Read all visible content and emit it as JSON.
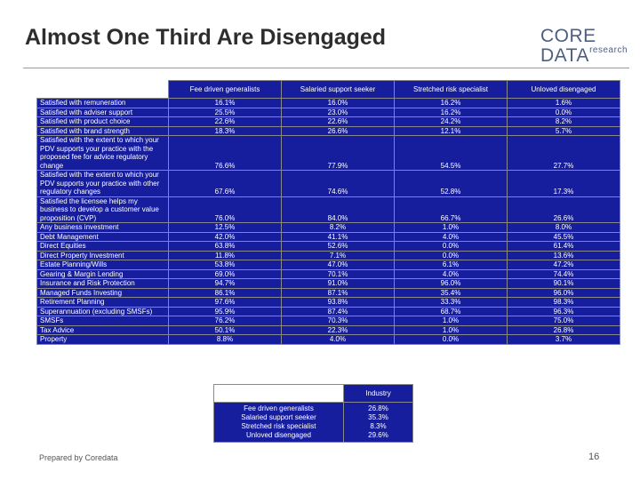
{
  "title": "Almost One Third Are Disengaged",
  "logo": {
    "main": "CORE DATA",
    "sub": "research"
  },
  "table": {
    "headers": [
      "Fee driven generalists",
      "Salaried support seeker",
      "Stretched risk specialist",
      "Unloved disengaged"
    ],
    "rows": [
      {
        "label": "Satisfied with remuneration",
        "values": [
          "16.1%",
          "16.0%",
          "16.2%",
          "1.6%"
        ]
      },
      {
        "label": "Satisfied with adviser support",
        "values": [
          "25.5%",
          "23.0%",
          "16.2%",
          "0.0%"
        ]
      },
      {
        "label": "Satisfied with product choice",
        "values": [
          "22.6%",
          "22.6%",
          "24.2%",
          "8.2%"
        ]
      },
      {
        "label": "Satisfied with brand strength",
        "values": [
          "18.3%",
          "26.6%",
          "12.1%",
          "5.7%"
        ]
      },
      {
        "label": "Satisfied with the extent to which your PDV supports your practice with the proposed fee for advice regulatory change",
        "values": [
          "76.6%",
          "77.9%",
          "54.5%",
          "27.7%"
        ],
        "tall": true
      },
      {
        "label": "Satisfied with the extent to which your PDV supports your practice with other regulatory changes",
        "values": [
          "67.6%",
          "74.6%",
          "52.8%",
          "17.3%"
        ],
        "tall": true
      },
      {
        "label": "Satisfied the licensee helps my business to develop a customer value proposition (CVP)",
        "values": [
          "76.0%",
          "84.0%",
          "66.7%",
          "26.6%"
        ],
        "tall": true
      },
      {
        "label": "Any business investment",
        "values": [
          "12.5%",
          "8.2%",
          "1.0%",
          "8.0%"
        ]
      },
      {
        "label": "Debt Management",
        "values": [
          "42.0%",
          "41.1%",
          "4.0%",
          "45.5%"
        ]
      },
      {
        "label": "Direct Equities",
        "values": [
          "63.8%",
          "52.6%",
          "0.0%",
          "61.4%"
        ]
      },
      {
        "label": "Direct Property Investment",
        "values": [
          "11.8%",
          "7.1%",
          "0.0%",
          "13.6%"
        ]
      },
      {
        "label": "Estate Planning/Wills",
        "values": [
          "53.8%",
          "47.0%",
          "6.1%",
          "47.2%"
        ]
      },
      {
        "label": "Gearing & Margin Lending",
        "values": [
          "69.0%",
          "70.1%",
          "4.0%",
          "74.4%"
        ]
      },
      {
        "label": "Insurance and Risk Protection",
        "values": [
          "94.7%",
          "91.0%",
          "96.0%",
          "90.1%"
        ]
      },
      {
        "label": "Managed Funds Investing",
        "values": [
          "86.1%",
          "87.1%",
          "35.4%",
          "96.0%"
        ]
      },
      {
        "label": "Retirement Planning",
        "values": [
          "97.6%",
          "93.8%",
          "33.3%",
          "98.3%"
        ]
      },
      {
        "label": "Superannuation (excluding SMSFs)",
        "values": [
          "95.9%",
          "87.4%",
          "68.7%",
          "96.3%"
        ]
      },
      {
        "label": "SMSFs",
        "values": [
          "76.2%",
          "70.3%",
          "1.0%",
          "75.0%"
        ]
      },
      {
        "label": "Tax Advice",
        "values": [
          "50.1%",
          "22.3%",
          "1.0%",
          "26.8%"
        ]
      },
      {
        "label": "Property",
        "values": [
          "8.8%",
          "4.0%",
          "0.0%",
          "3.7%"
        ]
      }
    ]
  },
  "industry": {
    "header": "Industry",
    "segments": [
      "Fee driven generalists",
      "Salaried support seeker",
      "Stretched risk specialist",
      "Unloved disengaged"
    ],
    "shares": [
      "26.8%",
      "35.3%",
      "8.3%",
      "29.6%"
    ]
  },
  "footer": {
    "left": "Prepared by Coredata",
    "page": "16"
  }
}
